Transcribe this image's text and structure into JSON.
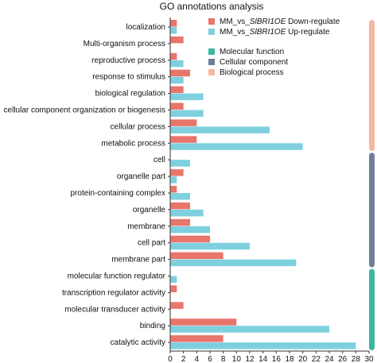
{
  "chart_data": {
    "type": "bar",
    "orientation": "horizontal",
    "title": "GO annotations analysis",
    "xlabel": "",
    "ylabel": "",
    "xlim": [
      0,
      30
    ],
    "xticks": [
      "0",
      "2",
      "4",
      "6",
      "8",
      "10",
      "12",
      "14",
      "16",
      "18",
      "20",
      "22",
      "24",
      "26",
      "28",
      "30"
    ],
    "grid": false,
    "legend_position": "top-right",
    "categories": [
      "localization",
      "Multi-organism process",
      "reproductive process",
      "response to stimulus",
      "biological regulation",
      "cellular component organization or biogenesis",
      "cellular process",
      "metabolic process",
      "cell",
      "organelle part",
      "protein-containing complex",
      "organelle",
      "membrane",
      "cell part",
      "membrane part",
      "molecular function regulator",
      "transcription regulator activity",
      "molecular transducer activity",
      "binding",
      "catalytic activity"
    ],
    "series": [
      {
        "name_prefix": "MM_vs_",
        "name_gene": "SlBRI1OE",
        "name_suffix": " Down-regulate",
        "color": "#E9756B",
        "values": [
          1,
          2,
          1,
          3,
          2,
          2,
          4,
          4,
          0,
          2,
          1,
          3,
          3,
          6,
          8,
          0,
          1,
          2,
          10,
          8
        ]
      },
      {
        "name_prefix": "MM_vs_",
        "name_gene": "SlBRI1OE",
        "name_suffix": " Up-regulate",
        "color": "#7FD0DF",
        "values": [
          1,
          0,
          2,
          2,
          5,
          5,
          15,
          20,
          3,
          1,
          3,
          5,
          6,
          12,
          19,
          1,
          0,
          0,
          24,
          28
        ]
      }
    ],
    "groups": [
      {
        "name": "Biological process",
        "color": "#F4B9A0",
        "from": 0,
        "to": 7
      },
      {
        "name": "Cellular component",
        "color": "#6E8099",
        "from": 8,
        "to": 14
      },
      {
        "name": "Molecular function",
        "color": "#3DB6A4",
        "from": 15,
        "to": 19
      }
    ],
    "legend_group_order": [
      "Molecular function",
      "Cellular component",
      "Biological process"
    ]
  }
}
